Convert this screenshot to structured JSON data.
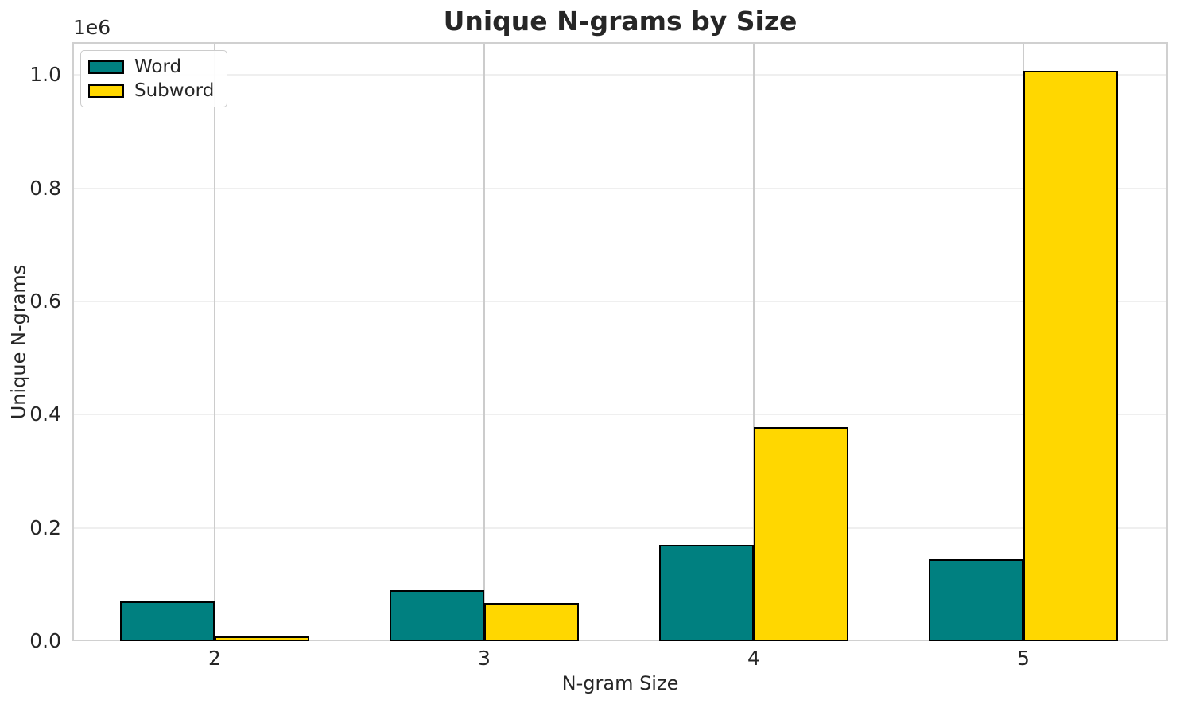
{
  "chart_data": {
    "type": "bar",
    "title": "Unique N-grams by Size",
    "xlabel": "N-gram Size",
    "ylabel": "Unique N-grams",
    "y_offset_text": "1e6",
    "categories": [
      "2",
      "3",
      "4",
      "5"
    ],
    "series": [
      {
        "name": "Word",
        "color": "#008080",
        "edge_color": "#000000",
        "values": [
          70000,
          90000,
          170000,
          145000
        ]
      },
      {
        "name": "Subword",
        "color": "#FFD700",
        "edge_color": "#000000",
        "values": [
          8500,
          67000,
          378000,
          1008000
        ]
      }
    ],
    "y_ticks": [
      {
        "value": 0,
        "label": "0.0"
      },
      {
        "value": 200000,
        "label": "0.2"
      },
      {
        "value": 400000,
        "label": "0.4"
      },
      {
        "value": 600000,
        "label": "0.6"
      },
      {
        "value": 800000,
        "label": "0.8"
      },
      {
        "value": 1000000,
        "label": "1.0"
      }
    ],
    "ylim": [
      0,
      1058000
    ],
    "grid": true,
    "legend_position": "upper left"
  }
}
